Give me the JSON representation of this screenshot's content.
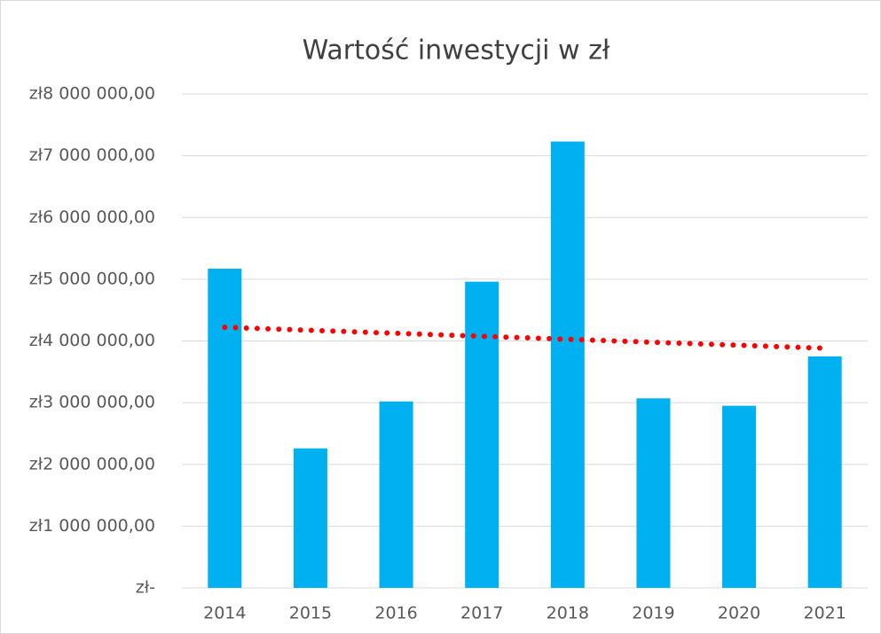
{
  "chart_data": {
    "type": "bar",
    "title": "Wartość inwestycji w zł",
    "categories": [
      "2014",
      "2015",
      "2016",
      "2017",
      "2018",
      "2019",
      "2020",
      "2021"
    ],
    "values": [
      5170000,
      2260000,
      3020000,
      4960000,
      7230000,
      3070000,
      2950000,
      3750000
    ],
    "color": "#00b0f0",
    "ylim": [
      0,
      8000000
    ],
    "yticks": [
      {
        "value": 0,
        "label": "zł-"
      },
      {
        "value": 1000000,
        "label": "zł1 000 000,00"
      },
      {
        "value": 2000000,
        "label": "zł2 000 000,00"
      },
      {
        "value": 3000000,
        "label": "zł3 000 000,00"
      },
      {
        "value": 4000000,
        "label": "zł4 000 000,00"
      },
      {
        "value": 5000000,
        "label": "zł5 000 000,00"
      },
      {
        "value": 6000000,
        "label": "zł6 000 000,00"
      },
      {
        "value": 7000000,
        "label": "zł7 000 000,00"
      },
      {
        "value": 8000000,
        "label": "zł8 000 000,00"
      }
    ],
    "grid": true,
    "trendline": {
      "type": "linear",
      "color": "#ff0000"
    }
  }
}
